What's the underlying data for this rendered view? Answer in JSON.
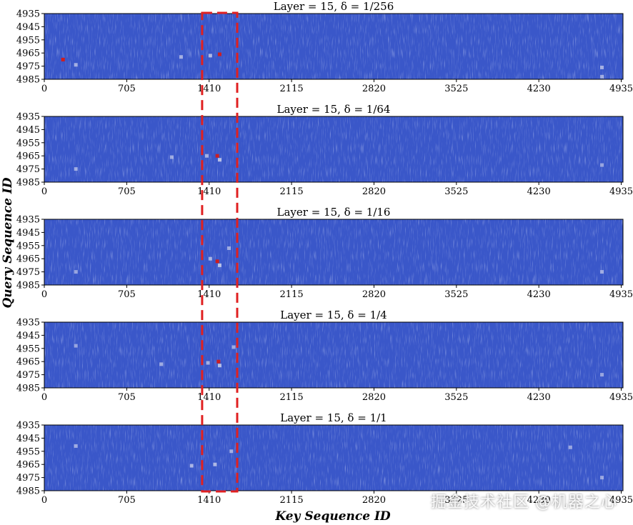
{
  "chart_data": {
    "type": "heatmap",
    "xlabel": "Key Sequence ID",
    "ylabel": "Query Sequence ID",
    "x_ticks": [
      0,
      705,
      1410,
      2115,
      2820,
      3525,
      4230,
      4935
    ],
    "y_ticks": [
      4935,
      4945,
      4955,
      4965,
      4975,
      4985
    ],
    "xlim": [
      0,
      4950
    ],
    "ylim": [
      4985,
      4935
    ],
    "colors": {
      "base": "#3a57c9",
      "highlight": "#e8e8f2",
      "hot": "#d11c1c",
      "box": "#e02020"
    },
    "highlight_box": {
      "x_range": [
        1350,
        1650
      ],
      "spans": "all panels"
    },
    "panels": [
      {
        "title": "Layer = 15,   δ = 1/256",
        "spots": [
          {
            "x": 160,
            "y": 4970,
            "v": 1.0
          },
          {
            "x": 1500,
            "y": 4966,
            "v": 0.95
          },
          {
            "x": 1420,
            "y": 4967,
            "v": 0.5
          },
          {
            "x": 1170,
            "y": 4968,
            "v": 0.4
          },
          {
            "x": 270,
            "y": 4974,
            "v": 0.4
          },
          {
            "x": 4770,
            "y": 4976,
            "v": 0.4
          },
          {
            "x": 4770,
            "y": 4983,
            "v": 0.35
          }
        ]
      },
      {
        "title": "Layer = 15,   δ = 1/64",
        "spots": [
          {
            "x": 1480,
            "y": 4965,
            "v": 0.95
          },
          {
            "x": 1500,
            "y": 4968,
            "v": 0.55
          },
          {
            "x": 1390,
            "y": 4965,
            "v": 0.4
          },
          {
            "x": 1090,
            "y": 4966,
            "v": 0.35
          },
          {
            "x": 270,
            "y": 4975,
            "v": 0.35
          },
          {
            "x": 4770,
            "y": 4972,
            "v": 0.3
          }
        ]
      },
      {
        "title": "Layer = 15,   δ = 1/16",
        "spots": [
          {
            "x": 1480,
            "y": 4967,
            "v": 1.0
          },
          {
            "x": 1500,
            "y": 4970,
            "v": 0.55
          },
          {
            "x": 1420,
            "y": 4965,
            "v": 0.4
          },
          {
            "x": 1580,
            "y": 4957,
            "v": 0.35
          },
          {
            "x": 270,
            "y": 4975,
            "v": 0.3
          },
          {
            "x": 4770,
            "y": 4975,
            "v": 0.35
          }
        ]
      },
      {
        "title": "Layer = 15,   δ = 1/4",
        "spots": [
          {
            "x": 1490,
            "y": 4965,
            "v": 0.95
          },
          {
            "x": 1500,
            "y": 4968,
            "v": 0.55
          },
          {
            "x": 1400,
            "y": 4966,
            "v": 0.4
          },
          {
            "x": 1620,
            "y": 4954,
            "v": 0.35
          },
          {
            "x": 1000,
            "y": 4967,
            "v": 0.35
          },
          {
            "x": 270,
            "y": 4953,
            "v": 0.3
          },
          {
            "x": 4770,
            "y": 4975,
            "v": 0.3
          }
        ]
      },
      {
        "title": "Layer = 15,   δ = 1/1",
        "spots": [
          {
            "x": 1460,
            "y": 4965,
            "v": 0.5
          },
          {
            "x": 1260,
            "y": 4966,
            "v": 0.45
          },
          {
            "x": 1600,
            "y": 4955,
            "v": 0.4
          },
          {
            "x": 270,
            "y": 4951,
            "v": 0.35
          },
          {
            "x": 4500,
            "y": 4952,
            "v": 0.3
          },
          {
            "x": 4770,
            "y": 4975,
            "v": 0.3
          }
        ]
      }
    ]
  },
  "watermark": "掘金技术社区 @机器之心"
}
